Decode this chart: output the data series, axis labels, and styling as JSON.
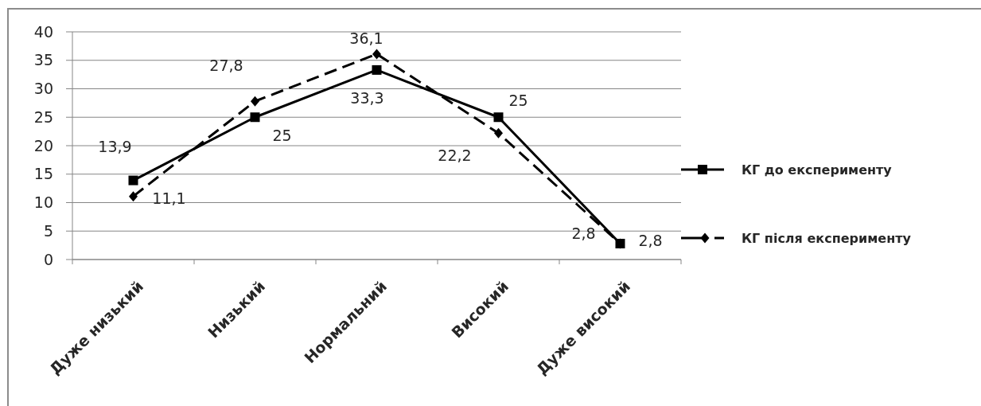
{
  "chart_data": {
    "type": "line",
    "categories": [
      "Дуже низький",
      "Низький",
      "Нормальний",
      "Високий",
      "Дуже високий"
    ],
    "series": [
      {
        "name": "КГ до експерименту",
        "color": "#000000",
        "marker": "square",
        "line_style": "solid",
        "values": [
          13.9,
          25,
          33.3,
          25,
          2.8
        ],
        "value_labels": [
          "13,9",
          "25",
          "33,3",
          "25",
          "2,8"
        ]
      },
      {
        "name": "КГ після експерименту",
        "color": "#000000",
        "marker": "diamond",
        "line_style": "dashed",
        "values": [
          11.1,
          27.8,
          36.1,
          22.2,
          2.8
        ],
        "value_labels": [
          "11,1",
          "27,8",
          "36,1",
          "22,2",
          "2,8"
        ]
      }
    ],
    "ylim": [
      0,
      40
    ],
    "yticks": [
      0,
      5,
      10,
      15,
      20,
      25,
      30,
      35,
      40
    ],
    "grid": "y",
    "legend": "right"
  }
}
